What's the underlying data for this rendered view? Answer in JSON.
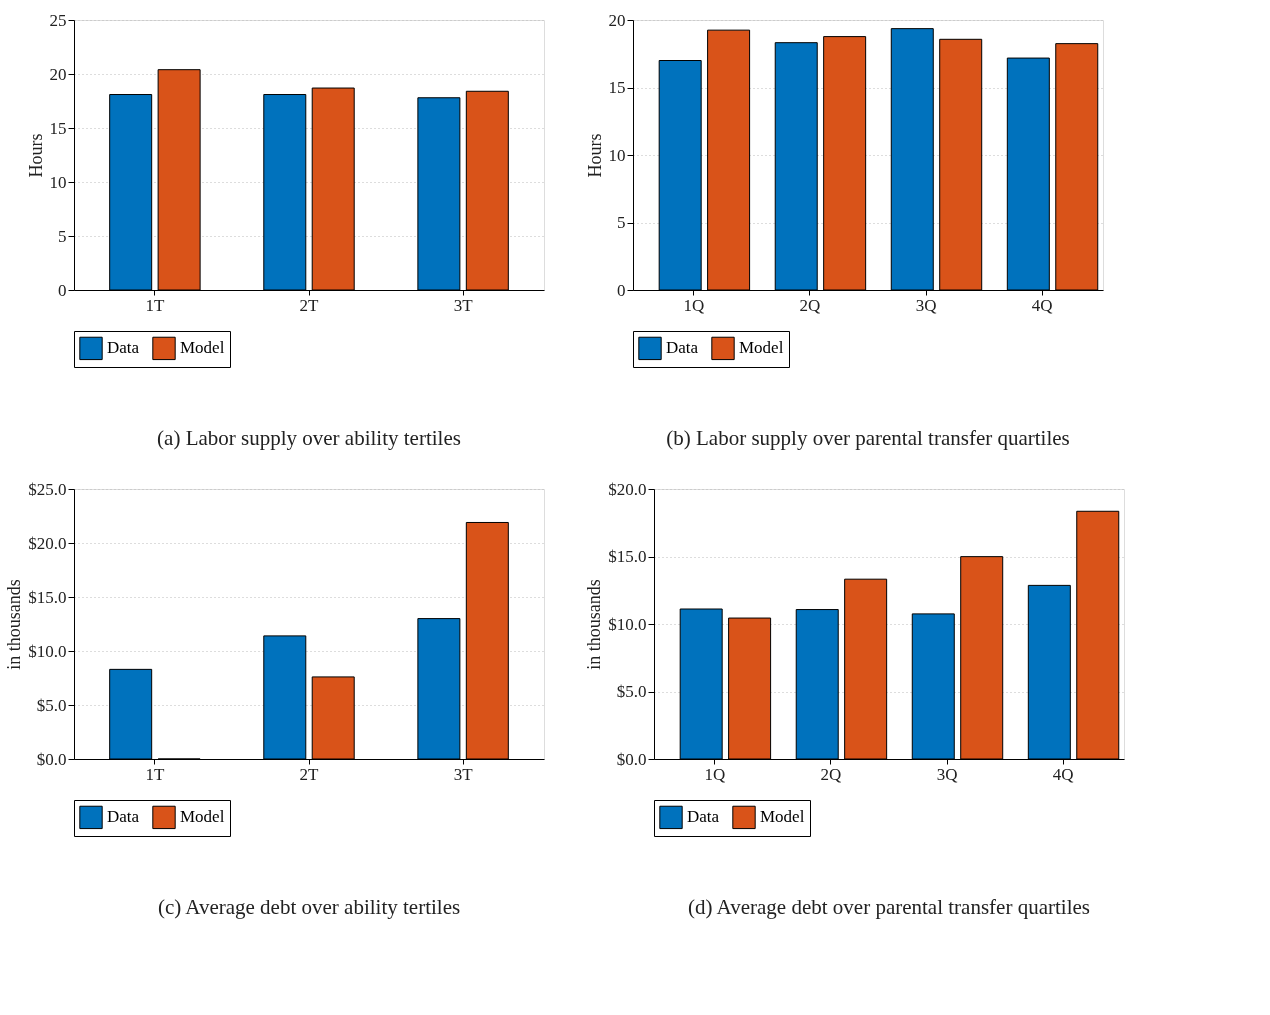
{
  "chart_data": [
    {
      "type": "bar",
      "title": "(a) Labor supply over ability tertiles",
      "ylabel": "Hours",
      "categories": [
        "1T",
        "2T",
        "3T"
      ],
      "series": [
        {
          "name": "Data",
          "color": "#0072bd",
          "values": [
            18.1,
            18.1,
            17.8
          ]
        },
        {
          "name": "Model",
          "color": "#d95319",
          "values": [
            20.4,
            18.7,
            18.4
          ]
        }
      ],
      "ylim": [
        0,
        25
      ],
      "yticks": [
        0,
        5,
        10,
        15,
        20,
        25
      ],
      "grid": "y",
      "legend": "bottom"
    },
    {
      "type": "bar",
      "title": "(b) Labor supply over parental transfer quartiles",
      "ylabel": "Hours",
      "categories": [
        "1Q",
        "2Q",
        "3Q",
        "4Q"
      ],
      "series": [
        {
          "name": "Data",
          "color": "#0072bd",
          "values": [
            17.0,
            18.32,
            19.36,
            17.18
          ]
        },
        {
          "name": "Model",
          "color": "#d95319",
          "values": [
            19.25,
            18.77,
            18.57,
            18.25
          ]
        }
      ],
      "ylim": [
        0,
        20
      ],
      "yticks": [
        0,
        5,
        10,
        15,
        20
      ],
      "grid": "y",
      "legend": "bottom"
    },
    {
      "type": "bar",
      "title": "(c) Average debt over ability tertiles",
      "ylabel": "in thousands",
      "categories": [
        "1T",
        "2T",
        "3T"
      ],
      "series": [
        {
          "name": "Data",
          "color": "#0072bd",
          "values": [
            8.3,
            11.4,
            13.0
          ]
        },
        {
          "name": "Model",
          "color": "#d95319",
          "values": [
            0,
            7.6,
            21.9
          ]
        }
      ],
      "ylim": [
        0,
        25
      ],
      "yticks": [
        {
          "value": 0,
          "label": "$0.0"
        },
        {
          "value": 5,
          "label": "$5.0"
        },
        {
          "value": 10,
          "label": "$10.0"
        },
        {
          "value": 15,
          "label": "$15.0"
        },
        {
          "value": 20,
          "label": "$20.0"
        },
        {
          "value": 25,
          "label": "$25.0"
        }
      ],
      "grid": "y",
      "legend": "bottom"
    },
    {
      "type": "bar",
      "title": "(d) Average debt over parental transfer quartiles",
      "ylabel": "in thousands",
      "categories": [
        "1Q",
        "2Q",
        "3Q",
        "4Q"
      ],
      "series": [
        {
          "name": "Data",
          "color": "#0072bd",
          "values": [
            11.11,
            11.07,
            10.75,
            12.86
          ]
        },
        {
          "name": "Model",
          "color": "#d95319",
          "values": [
            10.44,
            13.32,
            14.99,
            18.35
          ]
        }
      ],
      "ylim": [
        0,
        20
      ],
      "yticks": [
        {
          "value": 0,
          "label": "$0.0"
        },
        {
          "value": 5,
          "label": "$5.0"
        },
        {
          "value": 10,
          "label": "$10.0"
        },
        {
          "value": 15,
          "label": "$15.0"
        },
        {
          "value": 20,
          "label": "$20.0"
        }
      ],
      "grid": "y",
      "legend": "bottom"
    }
  ]
}
